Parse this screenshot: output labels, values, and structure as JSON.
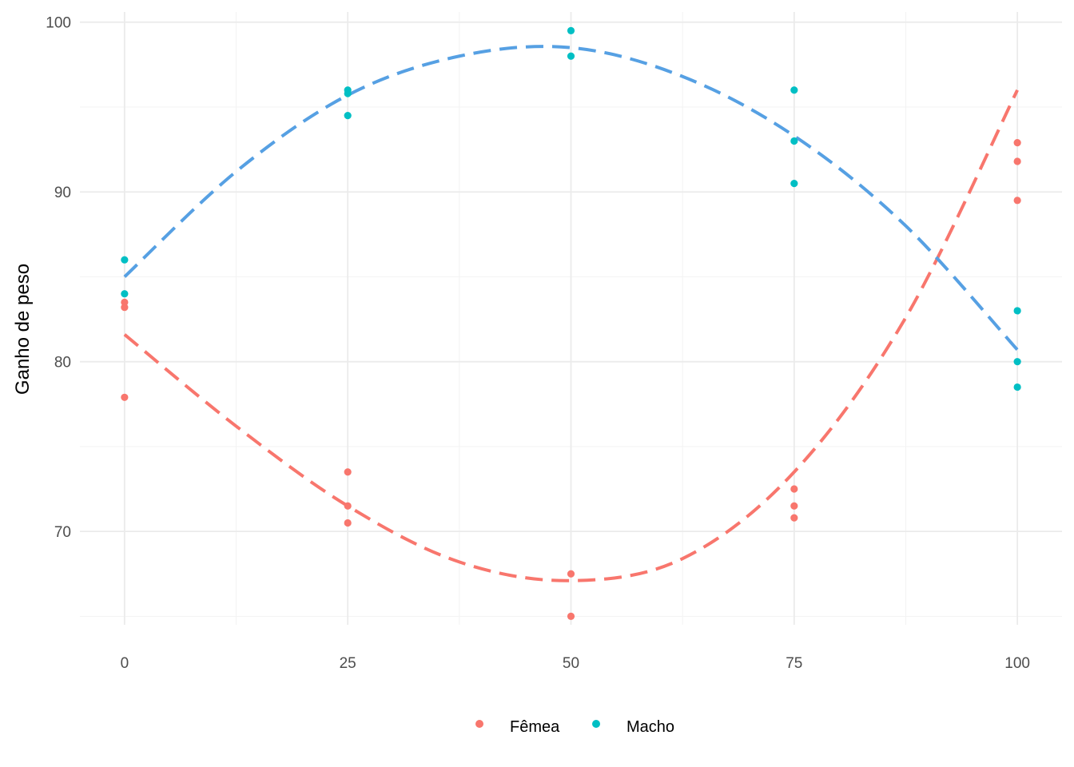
{
  "chart_data": {
    "type": "scatter",
    "xlabel": "",
    "ylabel": "Ganho de peso",
    "xlim": [
      -5,
      105
    ],
    "ylim": [
      64.5,
      100.6
    ],
    "x_ticks": [
      0,
      25,
      50,
      75,
      100
    ],
    "x_tick_labels": [
      "0",
      "25",
      "50",
      "75",
      "100"
    ],
    "y_ticks": [
      70,
      80,
      90,
      100
    ],
    "y_tick_labels": [
      "70",
      "80",
      "90",
      "100"
    ],
    "grid": true,
    "legend_position": "bottom",
    "series": [
      {
        "name": "Fêmea",
        "color": "#F8766D",
        "points": [
          [
            0,
            83.5
          ],
          [
            0,
            83.2
          ],
          [
            0,
            77.9
          ],
          [
            25,
            73.5
          ],
          [
            25,
            71.5
          ],
          [
            25,
            70.5
          ],
          [
            50,
            67.5
          ],
          [
            50,
            65.0
          ],
          [
            75,
            72.5
          ],
          [
            75,
            71.5
          ],
          [
            75,
            70.8
          ],
          [
            100,
            92.9
          ],
          [
            100,
            91.8
          ],
          [
            100,
            89.5
          ]
        ],
        "fit": [
          [
            0,
            81.6
          ],
          [
            12.5,
            76.2
          ],
          [
            25,
            71.5
          ],
          [
            37.5,
            68.2
          ],
          [
            50,
            67.1
          ],
          [
            62.5,
            68.4
          ],
          [
            75,
            73.5
          ],
          [
            87.5,
            82.6
          ],
          [
            100,
            96.0
          ]
        ]
      },
      {
        "name": "Macho",
        "color": "#00BFC4",
        "line_color": "#56A0E3",
        "points": [
          [
            0,
            86.0
          ],
          [
            0,
            84.0
          ],
          [
            25,
            96.0
          ],
          [
            25,
            95.8
          ],
          [
            25,
            94.5
          ],
          [
            50,
            99.5
          ],
          [
            50,
            98.0
          ],
          [
            75,
            96.0
          ],
          [
            75,
            93.0
          ],
          [
            75,
            90.5
          ],
          [
            100,
            83.0
          ],
          [
            100,
            80.0
          ],
          [
            100,
            78.5
          ]
        ],
        "fit": [
          [
            0,
            85.0
          ],
          [
            12.5,
            91.2
          ],
          [
            25,
            95.7
          ],
          [
            37.5,
            98.0
          ],
          [
            50,
            98.5
          ],
          [
            62.5,
            96.8
          ],
          [
            75,
            93.3
          ],
          [
            87.5,
            88.0
          ],
          [
            100,
            80.7
          ]
        ]
      }
    ]
  }
}
